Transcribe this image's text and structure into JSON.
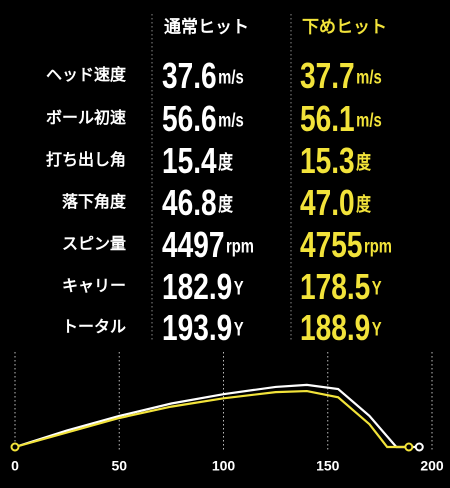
{
  "table": {
    "headers": [
      "通常ヒット",
      "下めヒット"
    ],
    "rows": [
      {
        "label": "ヘッド速度",
        "values": [
          "37.6",
          "37.7"
        ],
        "unit": "m/s"
      },
      {
        "label": "ボール初速",
        "values": [
          "56.6",
          "56.1"
        ],
        "unit": "m/s"
      },
      {
        "label": "打ち出し角",
        "values": [
          "15.4",
          "15.3"
        ],
        "unit": "度"
      },
      {
        "label": "落下角度",
        "values": [
          "46.8",
          "47.0"
        ],
        "unit": "度"
      },
      {
        "label": "スピン量",
        "values": [
          "4497",
          "4755"
        ],
        "unit": "rpm"
      },
      {
        "label": "キャリー",
        "values": [
          "182.9",
          "178.5"
        ],
        "unit": "Y"
      },
      {
        "label": "トータル",
        "values": [
          "193.9",
          "188.9"
        ],
        "unit": "Y"
      }
    ]
  },
  "chart_data": {
    "type": "line",
    "xlim": [
      0,
      200
    ],
    "xticks": [
      0,
      50,
      100,
      150,
      200
    ],
    "ylim": [
      0,
      42
    ],
    "grid": true,
    "series": [
      {
        "color": "#ffffff",
        "x": [
          0,
          25,
          50,
          75,
          100,
          125,
          140,
          155,
          170,
          182.9,
          193.9
        ],
        "values": [
          0,
          8,
          15,
          21,
          25.5,
          29,
          30,
          28,
          15,
          0,
          0
        ]
      },
      {
        "color": "#f2e33a",
        "x": [
          0,
          25,
          50,
          75,
          100,
          125,
          140,
          155,
          170,
          178.5,
          188.9
        ],
        "values": [
          0,
          7,
          14,
          19.5,
          23.5,
          26.5,
          27,
          24,
          11,
          0,
          0
        ]
      }
    ]
  }
}
